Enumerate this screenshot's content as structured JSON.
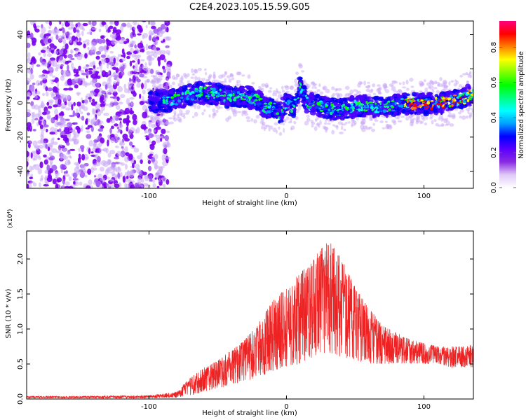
{
  "title": "C2E4.2023.105.15.59.G05",
  "chart_data": [
    {
      "type": "heatmap",
      "xlabel": "Height of straight line (km)",
      "ylabel": "Frequency (Hz)",
      "xlim": [
        -189,
        136
      ],
      "ylim": [
        -50,
        48
      ],
      "xticks": [
        -100,
        0,
        100
      ],
      "xtick_labels": [
        "-100",
        "0",
        "100"
      ],
      "yticks": [
        -40,
        -20,
        0,
        20,
        40
      ],
      "ytick_labels": [
        "-40",
        "-20",
        "0",
        "20",
        "40"
      ],
      "colorbar": {
        "label": "Normalized spectral amplitude",
        "range": [
          0,
          0.95
        ],
        "ticks": [
          0.0,
          0.2,
          0.4,
          0.6,
          0.8
        ],
        "tick_labels": [
          "0.0",
          "0.2",
          "0.4",
          "0.6",
          "0.8"
        ],
        "colormap": [
          "#ffffff",
          "#e0c8f8",
          "#8a2be2",
          "#5a00ff",
          "#0000ff",
          "#00a0ff",
          "#00ffff",
          "#00ff80",
          "#00ff00",
          "#80ff00",
          "#ffff00",
          "#ff8000",
          "#ff0000",
          "#ff0080"
        ]
      },
      "ridge": {
        "x": [
          -100,
          -90,
          -80,
          -70,
          -60,
          -50,
          -40,
          -30,
          -20,
          -15,
          -10,
          -5,
          0,
          5,
          10,
          15,
          20,
          30,
          40,
          50,
          60,
          70,
          80,
          90,
          100,
          110,
          120,
          130,
          136
        ],
        "y": [
          1,
          1,
          2,
          5,
          6,
          5,
          3,
          4,
          1,
          -3,
          -2,
          -6,
          0,
          -3,
          10,
          0,
          -1,
          -3,
          -4,
          -2,
          -2,
          -3,
          -1,
          0,
          -1,
          0,
          1,
          3,
          6
        ]
      },
      "noise_region_x": [
        -189,
        -85
      ]
    },
    {
      "type": "line",
      "xlabel": "Height of straight line (km)",
      "ylabel": "SNR (10 * v/v)",
      "y_multiplier": "(x10⁴)",
      "xlim": [
        -189,
        136
      ],
      "ylim": [
        0,
        2.4
      ],
      "xticks": [
        -100,
        0,
        100
      ],
      "xtick_labels": [
        "-100",
        "0",
        "100"
      ],
      "yticks": [
        0,
        0.5,
        1.0,
        1.5,
        2.0
      ],
      "ytick_labels": [
        "0.0",
        "0.5",
        "1.0",
        "1.5",
        "2.0"
      ],
      "series_color": "#ee2222",
      "envelope": {
        "x": [
          -189,
          -150,
          -100,
          -80,
          -70,
          -60,
          -50,
          -40,
          -30,
          -20,
          -10,
          0,
          10,
          20,
          30,
          40,
          50,
          60,
          70,
          80,
          90,
          100,
          110,
          120,
          130,
          136
        ],
        "low": [
          0.01,
          0.01,
          0.01,
          0.02,
          0.05,
          0.1,
          0.15,
          0.2,
          0.25,
          0.3,
          0.4,
          0.45,
          0.5,
          0.6,
          0.65,
          0.6,
          0.55,
          0.5,
          0.5,
          0.5,
          0.5,
          0.5,
          0.5,
          0.45,
          0.45,
          0.45
        ],
        "high": [
          0.04,
          0.04,
          0.05,
          0.1,
          0.3,
          0.45,
          0.55,
          0.7,
          0.85,
          1.1,
          1.4,
          1.6,
          1.8,
          2.0,
          2.3,
          2.0,
          1.6,
          1.3,
          1.05,
          0.95,
          0.85,
          0.8,
          0.75,
          0.75,
          0.75,
          0.8
        ]
      }
    }
  ]
}
